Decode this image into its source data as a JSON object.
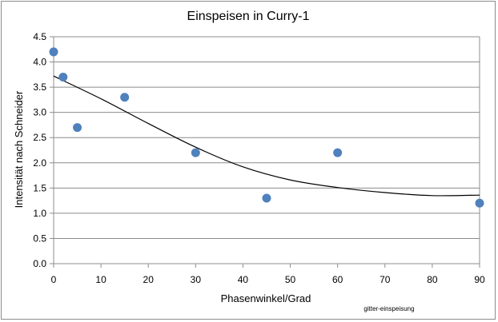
{
  "chart_data": {
    "type": "scatter",
    "title": "Einspeisen in Curry-1",
    "xlabel": "Phasenwinkel/Grad",
    "ylabel": "Intensität nach Schneider",
    "xlim": [
      0,
      90
    ],
    "ylim": [
      0,
      4.5
    ],
    "x_ticks": [
      "0",
      "10",
      "20",
      "30",
      "40",
      "50",
      "60",
      "70",
      "80",
      "90"
    ],
    "y_ticks": [
      "0.0",
      "0.5",
      "1.0",
      "1.5",
      "2.0",
      "2.5",
      "3.0",
      "3.5",
      "4.0",
      "4.5"
    ],
    "grid": "horizontal",
    "legend": "none",
    "colors": {
      "points": "#4f81bd",
      "trendline": "#000000",
      "grid": "#8c8c8c"
    },
    "points": [
      {
        "x": 0,
        "y": 4.2
      },
      {
        "x": 2,
        "y": 3.7
      },
      {
        "x": 5,
        "y": 2.7
      },
      {
        "x": 15,
        "y": 3.3
      },
      {
        "x": 30,
        "y": 2.2
      },
      {
        "x": 45,
        "y": 1.3
      },
      {
        "x": 60,
        "y": 2.2
      },
      {
        "x": 90,
        "y": 1.2
      }
    ],
    "trendline": {
      "type": "polynomial",
      "values": [
        {
          "x": 0,
          "y": 3.72
        },
        {
          "x": 10,
          "y": 3.27
        },
        {
          "x": 20,
          "y": 2.78
        },
        {
          "x": 30,
          "y": 2.31
        },
        {
          "x": 40,
          "y": 1.92
        },
        {
          "x": 50,
          "y": 1.66
        },
        {
          "x": 60,
          "y": 1.51
        },
        {
          "x": 70,
          "y": 1.41
        },
        {
          "x": 80,
          "y": 1.35
        },
        {
          "x": 90,
          "y": 1.36
        }
      ]
    },
    "annotation": "gitter-einspeisung"
  }
}
